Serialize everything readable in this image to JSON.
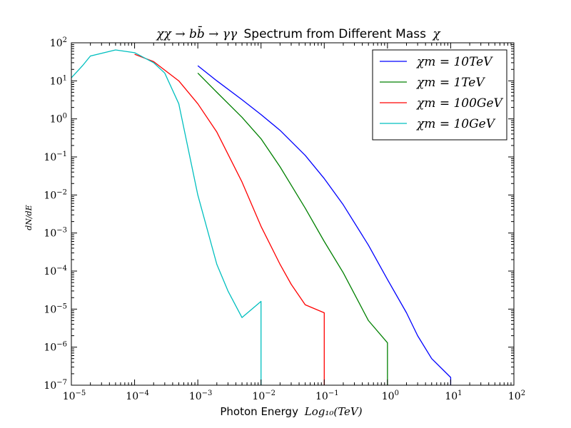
{
  "chart_data": {
    "type": "line",
    "title": {
      "math_prefix": "χχ → bb̄ → γγ",
      "text": "Spectrum from Different Mass",
      "math_suffix": "χ"
    },
    "xlabel": {
      "text": "Photon Energy",
      "math": "Log₁₀(TeV)"
    },
    "ylabel": "dN/dE",
    "xscale": "log",
    "yscale": "log",
    "xlim": [
      1e-05,
      100
    ],
    "ylim": [
      1e-07,
      100
    ],
    "x_ticks": [
      {
        "value": 1e-05,
        "base": "10",
        "exp": "−5"
      },
      {
        "value": 0.0001,
        "base": "10",
        "exp": "−4"
      },
      {
        "value": 0.001,
        "base": "10",
        "exp": "−3"
      },
      {
        "value": 0.01,
        "base": "10",
        "exp": "−2"
      },
      {
        "value": 0.1,
        "base": "10",
        "exp": "−1"
      },
      {
        "value": 1,
        "base": "10",
        "exp": "0"
      },
      {
        "value": 10,
        "base": "10",
        "exp": "1"
      },
      {
        "value": 100,
        "base": "10",
        "exp": "2"
      }
    ],
    "y_ticks": [
      {
        "value": 1e-07,
        "base": "10",
        "exp": "−7"
      },
      {
        "value": 1e-06,
        "base": "10",
        "exp": "−6"
      },
      {
        "value": 1e-05,
        "base": "10",
        "exp": "−5"
      },
      {
        "value": 0.0001,
        "base": "10",
        "exp": "−4"
      },
      {
        "value": 0.001,
        "base": "10",
        "exp": "−3"
      },
      {
        "value": 0.01,
        "base": "10",
        "exp": "−2"
      },
      {
        "value": 0.1,
        "base": "10",
        "exp": "−1"
      },
      {
        "value": 1,
        "base": "10",
        "exp": "0"
      },
      {
        "value": 10,
        "base": "10",
        "exp": "1"
      },
      {
        "value": 100,
        "base": "10",
        "exp": "2"
      }
    ],
    "grid": false,
    "legend_position": "top-right",
    "series": [
      {
        "name": "χm = 10TeV",
        "color": "#0000ff",
        "points": [
          [
            0.001,
            25
          ],
          [
            0.002,
            10
          ],
          [
            0.005,
            3.2
          ],
          [
            0.01,
            1.3
          ],
          [
            0.02,
            0.5
          ],
          [
            0.05,
            0.11
          ],
          [
            0.1,
            0.027
          ],
          [
            0.2,
            0.0055
          ],
          [
            0.5,
            0.00048
          ],
          [
            1,
            6e-05
          ],
          [
            2,
            8e-06
          ],
          [
            3,
            2e-06
          ],
          [
            5,
            5e-07
          ],
          [
            10,
            1.6e-07
          ],
          [
            10,
            1e-07
          ]
        ]
      },
      {
        "name": "χm = 1TeV",
        "color": "#008000",
        "points": [
          [
            0.001,
            16
          ],
          [
            0.002,
            5
          ],
          [
            0.005,
            1.1
          ],
          [
            0.01,
            0.3
          ],
          [
            0.02,
            0.055
          ],
          [
            0.05,
            0.0045
          ],
          [
            0.1,
            0.0006
          ],
          [
            0.2,
            9e-05
          ],
          [
            0.3,
            2.5e-05
          ],
          [
            0.5,
            5e-06
          ],
          [
            1,
            1.3e-06
          ],
          [
            1,
            1e-07
          ]
        ]
      },
      {
        "name": "χm = 100GeV",
        "color": "#ff0000",
        "points": [
          [
            0.0001,
            50
          ],
          [
            0.0002,
            32
          ],
          [
            0.0005,
            10
          ],
          [
            0.001,
            2.5
          ],
          [
            0.002,
            0.45
          ],
          [
            0.005,
            0.022
          ],
          [
            0.01,
            0.0015
          ],
          [
            0.02,
            0.00015
          ],
          [
            0.03,
            4.5e-05
          ],
          [
            0.05,
            1.3e-05
          ],
          [
            0.1,
            8e-06
          ],
          [
            0.1,
            1e-07
          ]
        ]
      },
      {
        "name": "χm = 10GeV",
        "color": "#00bfbf",
        "points": [
          [
            1e-05,
            12
          ],
          [
            1.5e-05,
            25
          ],
          [
            2e-05,
            45
          ],
          [
            5e-05,
            65
          ],
          [
            0.0001,
            55
          ],
          [
            0.0002,
            30
          ],
          [
            0.0003,
            16
          ],
          [
            0.0005,
            2.5
          ],
          [
            0.001,
            0.01
          ],
          [
            0.002,
            0.00015
          ],
          [
            0.003,
            3e-05
          ],
          [
            0.005,
            6e-06
          ],
          [
            0.01,
            1.6e-05
          ],
          [
            0.01,
            1e-07
          ]
        ]
      }
    ]
  }
}
